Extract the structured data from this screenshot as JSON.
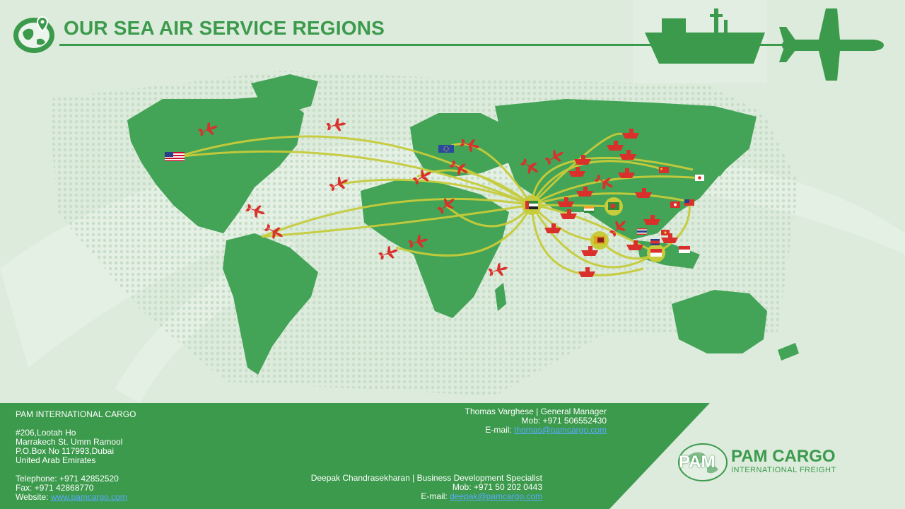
{
  "header": {
    "title": "OUR SEA AIR SERVICE REGIONS"
  },
  "colors": {
    "brand_green": "#3c9a4c",
    "map_green": "#43a356",
    "route_yellow": "#c6cc3a",
    "plane_red": "#d9302c",
    "link_blue": "#5aa9ff"
  },
  "icons": [
    "globe-pin-icon",
    "ship-icon",
    "airplane-icon",
    "plane-marker-icon",
    "ship-marker-icon",
    "flag-icon"
  ],
  "footer": {
    "company": "PAM INTERNATIONAL CARGO",
    "address": [
      "#206,Lootah Ho",
      "Marrakech St. Umm Ramool",
      "P.O.Box No 117993,Dubai",
      "United Arab Emirates"
    ],
    "telephone": "Telephone: +971 42852520",
    "fax": "Fax: +971 42868770",
    "website_label": "Website: ",
    "website_link": "www.pamcargo.com",
    "contact1": {
      "name_title": "Thomas Varghese | General Manager",
      "mobile": "Mob: +971 506552430",
      "email_label": "E-mail: ",
      "email": "thomas@pamcargo.com"
    },
    "contact2": {
      "name_title": "Deepak Chandrasekharan  |  Business Development Specialist",
      "mobile": "Mob: +971 50 202 0443",
      "email_label": "E-mail: ",
      "email": "deepak@pamcargo.com"
    }
  },
  "logo": {
    "mark": "PAM",
    "name": "PAM CARGO",
    "tagline": "INTERNATIONAL FREIGHT"
  }
}
